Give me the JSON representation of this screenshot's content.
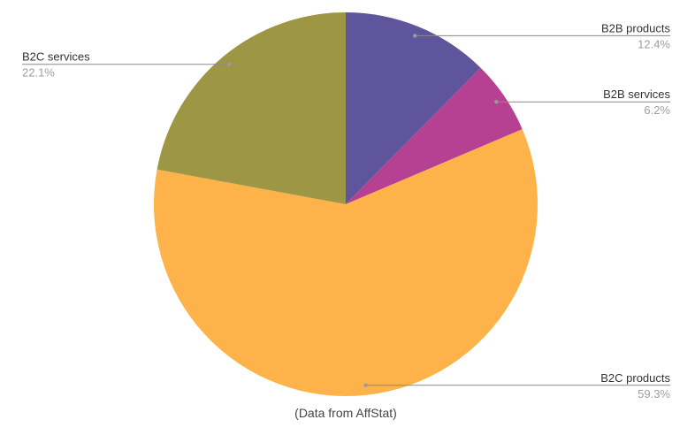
{
  "chart_data": {
    "type": "pie",
    "start_angle": "top, clockwise",
    "slices": [
      {
        "label": "B2B products",
        "value": 12.4,
        "value_label": "12.4%",
        "color": "#5e559c"
      },
      {
        "label": "B2B services",
        "value": 6.2,
        "value_label": "6.2%",
        "color": "#b64091"
      },
      {
        "label": "B2C products",
        "value": 59.3,
        "value_label": "59.3%",
        "color": "#fdb349"
      },
      {
        "label": "B2C services",
        "value": 22.1,
        "value_label": "22.1%",
        "color": "#9c9645"
      }
    ],
    "legend": "labels with leader lines",
    "caption": "(Data from AffStat)"
  }
}
